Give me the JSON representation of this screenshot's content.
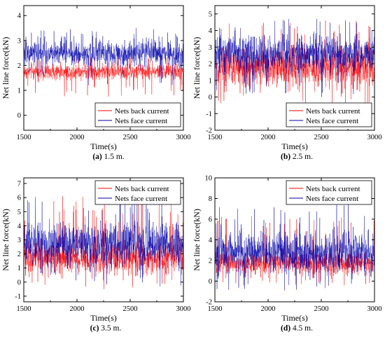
{
  "chart_data": [
    {
      "type": "line",
      "caption_tag": "(a)",
      "caption_text": " 1.5 m.",
      "xlabel": "Time(s)",
      "ylabel": "Net line force(kN)",
      "xlim": [
        1500,
        3000
      ],
      "ylim": [
        -0.6,
        4.4
      ],
      "xticks": [
        1500,
        2000,
        2500,
        3000
      ],
      "yticks": [
        0,
        1,
        2,
        3,
        4
      ],
      "legend_position": "bottom-right",
      "grid": false,
      "series": [
        {
          "name": "Nets back current",
          "color": "#ff0000",
          "mean": 1.75,
          "range": [
            0.75,
            2.35
          ]
        },
        {
          "name": "Nets face current",
          "color": "#0000aa",
          "mean": 2.5,
          "range": [
            1.2,
            3.5
          ]
        }
      ]
    },
    {
      "type": "line",
      "caption_tag": "(b)",
      "caption_text": " 2.5 m.",
      "xlabel": "Time(s)",
      "ylabel": "Net line force(kN)",
      "xlim": [
        1500,
        3000
      ],
      "ylim": [
        -2,
        5.5
      ],
      "xticks": [
        1500,
        2000,
        2500,
        3000
      ],
      "yticks": [
        -2,
        -1,
        0,
        1,
        2,
        3,
        4,
        5
      ],
      "legend_position": "bottom-right",
      "grid": false,
      "series": [
        {
          "name": "Nets back current",
          "color": "#ff0000",
          "mean": 1.8,
          "range": [
            -0.6,
            4.6
          ]
        },
        {
          "name": "Nets face current",
          "color": "#0000aa",
          "mean": 2.6,
          "range": [
            0.0,
            4.7
          ]
        }
      ]
    },
    {
      "type": "line",
      "caption_tag": "(c)",
      "caption_text": " 3.5 m.",
      "xlabel": "Time(s)",
      "ylabel": "Net line force(kN)",
      "xlim": [
        1500,
        3000
      ],
      "ylim": [
        -1.4,
        7.4
      ],
      "xticks": [
        1500,
        2000,
        2500,
        3000
      ],
      "yticks": [
        -1,
        0,
        1,
        2,
        3,
        4,
        5,
        6,
        7
      ],
      "legend_position": "top-right",
      "grid": false,
      "series": [
        {
          "name": "Nets back current",
          "color": "#ff0000",
          "mean": 1.7,
          "range": [
            -0.5,
            6.1
          ]
        },
        {
          "name": "Nets face current",
          "color": "#0000aa",
          "mean": 2.7,
          "range": [
            -0.3,
            6.2
          ]
        }
      ]
    },
    {
      "type": "line",
      "caption_tag": "(d)",
      "caption_text": " 4.5 m.",
      "xlabel": "Time(s)",
      "ylabel": "Net line force(kN)",
      "xlim": [
        1500,
        3000
      ],
      "ylim": [
        -2,
        10
      ],
      "xticks": [
        1500,
        2000,
        2500,
        3000
      ],
      "yticks": [
        -2,
        0,
        2,
        4,
        6,
        8,
        10
      ],
      "legend_position": "top-right",
      "grid": false,
      "series": [
        {
          "name": "Nets back current",
          "color": "#ff0000",
          "mean": 1.7,
          "range": [
            -0.4,
            6.3
          ]
        },
        {
          "name": "Nets face current",
          "color": "#0000aa",
          "mean": 2.8,
          "range": [
            -0.9,
            7.4
          ]
        }
      ]
    }
  ]
}
